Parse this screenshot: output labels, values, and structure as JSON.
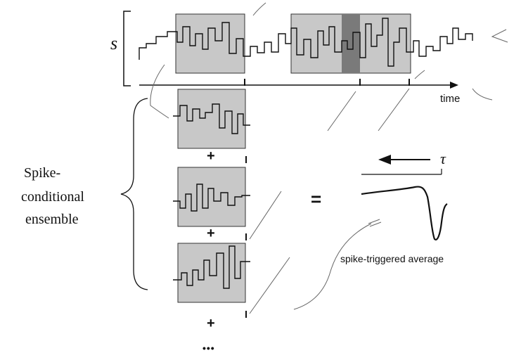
{
  "labels": {
    "stimulus": "s",
    "time": "time",
    "tau": "τ",
    "ensemble_line1": "Spike-",
    "ensemble_line2": "conditional",
    "ensemble_line3": "ensemble",
    "equals": "=",
    "plus": "+",
    "ellipsis": "•••",
    "sta_caption": "spike-triggered average"
  },
  "colors": {
    "window_fill": "#c8c8c8",
    "highlight_fill": "#7a7a7a",
    "ink": "#111111",
    "pencil": "#555555"
  }
}
